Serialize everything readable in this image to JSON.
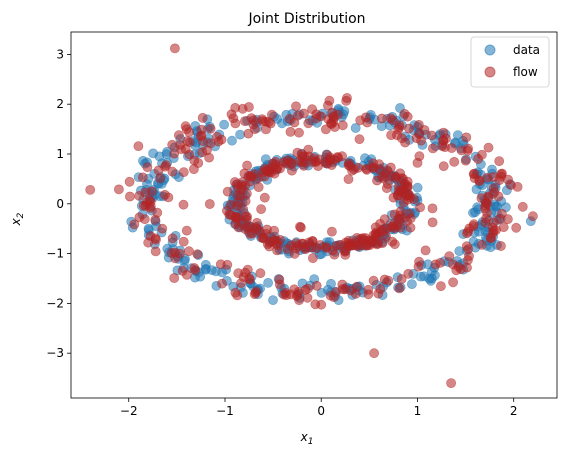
{
  "chart_data": {
    "type": "scatter",
    "title": "Joint Distribution",
    "xlabel": "x",
    "xlabel_sub": "1",
    "ylabel": "x",
    "ylabel_sub": "2",
    "xlim": [
      -2.6,
      2.45
    ],
    "ylim": [
      -3.9,
      3.45
    ],
    "xticks": [
      -2,
      -1,
      0,
      1,
      2
    ],
    "yticks": [
      -3,
      -2,
      -1,
      0,
      1,
      2,
      3
    ],
    "xtick_labels": [
      "−2",
      "−1",
      "0",
      "1",
      "2"
    ],
    "ytick_labels": [
      "−3",
      "−2",
      "−1",
      "0",
      "1",
      "2",
      "3"
    ],
    "grid": false,
    "legend_position": "top-right",
    "series": [
      {
        "name": "data",
        "color": "#1f77b4",
        "alpha": 0.55,
        "generator": {
          "type": "two-concentric-rings",
          "rings": [
            {
              "rx": 1.8,
              "ry": 1.8,
              "n": 280
            },
            {
              "rx": 0.9,
              "ry": 0.9,
              "n": 240
            }
          ],
          "noise": 0.06,
          "seed": 7
        }
      },
      {
        "name": "flow",
        "color": "#b22222",
        "alpha": 0.55,
        "generator": {
          "type": "two-concentric-rings",
          "rings": [
            {
              "rx": 1.8,
              "ry": 1.8,
              "n": 260
            },
            {
              "rx": 0.9,
              "ry": 0.9,
              "n": 230
            }
          ],
          "noise": 0.09,
          "seed": 19,
          "scatter_n": 45,
          "scatter_spread": 0.9
        },
        "outliers": [
          {
            "x": -1.52,
            "y": 3.12
          },
          {
            "x": -2.4,
            "y": 0.28
          },
          {
            "x": 2.2,
            "y": -0.25
          },
          {
            "x": 0.55,
            "y": -3.0
          },
          {
            "x": 1.35,
            "y": -3.6
          }
        ]
      }
    ]
  }
}
